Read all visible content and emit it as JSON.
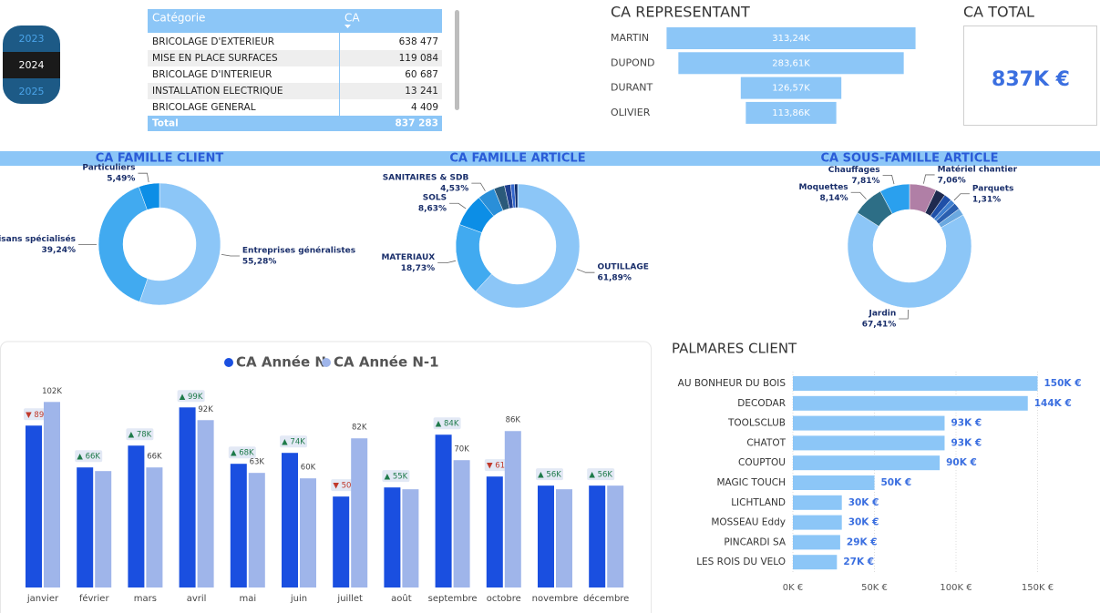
{
  "slicer": {
    "items": [
      {
        "label": "2023",
        "selected": false
      },
      {
        "label": "2024",
        "selected": true
      },
      {
        "label": "2025",
        "selected": false
      }
    ]
  },
  "table": {
    "columns": [
      "Catégorie",
      "CA"
    ],
    "rows": [
      [
        "BRICOLAGE D'EXTERIEUR",
        "638 477"
      ],
      [
        "MISE EN PLACE SURFACES",
        "119 084"
      ],
      [
        "BRICOLAGE D'INTERIEUR",
        "60 687"
      ],
      [
        "INSTALLATION ELECTRIQUE",
        "13 241"
      ],
      [
        "BRICOLAGE GENERAL",
        "4 409"
      ]
    ],
    "total": [
      "Total",
      "837 283"
    ]
  },
  "card": {
    "title": "CA TOTAL",
    "value": "837K €"
  },
  "chart_data": [
    {
      "type": "funnel",
      "title": "CA REPRESENTANT",
      "categories": [
        "MARTIN",
        "DUPOND",
        "DURANT",
        "OLIVIER"
      ],
      "values": [
        313.24,
        283.61,
        126.57,
        113.86
      ],
      "value_labels": [
        "313,24K",
        "283,61K",
        "126,57K",
        "113,86K"
      ],
      "color": "#8cc6f7"
    },
    {
      "type": "donut",
      "title": "CA FAMILLE CLIENT",
      "categories": [
        "Entreprises généralistes",
        "Artisans spécialisés",
        "Particuliers"
      ],
      "values": [
        55.28,
        39.24,
        5.49
      ],
      "value_labels": [
        "55,28%",
        "39,24%",
        "5,49%"
      ],
      "colors": [
        "#8cc6f7",
        "#41aaf0",
        "#0c8ee6"
      ]
    },
    {
      "type": "donut",
      "title": "CA FAMILLE ARTICLE",
      "categories": [
        "OUTILLAGE",
        "MATERIAUX",
        "SOLS",
        "SANITAIRES & SDB",
        null,
        null,
        null,
        null
      ],
      "values": [
        61.89,
        18.73,
        8.63,
        4.53,
        2.8,
        1.6,
        1.0,
        0.82
      ],
      "value_labels": [
        "61,89%",
        "18,73%",
        "8,63%",
        "4,53%",
        null,
        null,
        null,
        null
      ],
      "colors": [
        "#8cc6f7",
        "#41aaf0",
        "#0c8ee6",
        "#2a8fd8",
        "#2b5a7a",
        "#1f3f8f",
        "#3366cc",
        "#0b2a6b"
      ]
    },
    {
      "type": "donut",
      "title": "CA SOUS-FAMILLE ARTICLE",
      "categories": [
        "Matériel chantier",
        null,
        null,
        "Parquets",
        null,
        null,
        "Jardin",
        "Moquettes",
        "Chauffages"
      ],
      "values": [
        7.06,
        2.6,
        2.0,
        1.31,
        1.8,
        1.87,
        67.41,
        8.14,
        7.81
      ],
      "value_labels": [
        "7,06%",
        null,
        null,
        "1,31%",
        null,
        null,
        "67,41%",
        "8,14%",
        "7,81%"
      ],
      "colors": [
        "#b07fa6",
        "#1f2a4f",
        "#1f4fa8",
        "#3f7fd0",
        "#2a5fb0",
        "#6aa8e0",
        "#8cc6f7",
        "#2d6e86",
        "#2aa0ee"
      ]
    },
    {
      "type": "grouped-bar",
      "categories": [
        "janvier",
        "février",
        "mars",
        "avril",
        "mai",
        "juin",
        "juillet",
        "août",
        "septembre",
        "octobre",
        "novembre",
        "décembre"
      ],
      "series": [
        {
          "name": "CA Année N",
          "color": "#1a4fe0",
          "values": [
            89,
            66,
            78,
            99,
            68,
            74,
            50,
            55,
            84,
            61,
            56,
            56
          ],
          "value_labels": [
            "▼ 89K",
            "▲ 66K",
            "▲ 78K",
            "▲ 99K",
            "▲ 68K",
            "▲ 74K",
            "▼ 50K",
            "▲ 55K",
            "▲ 84K",
            "▼ 61K",
            "▲ 56K",
            "▲ 56K"
          ]
        },
        {
          "name": "CA Année N-1",
          "color": "#9fb5ea",
          "values": [
            102,
            64,
            66,
            92,
            63,
            60,
            82,
            54,
            70,
            86,
            54,
            56
          ],
          "value_labels": [
            "102K",
            null,
            "66K",
            "92K",
            "63K",
            "60K",
            "82K",
            null,
            "70K",
            "86K",
            null,
            null
          ]
        }
      ]
    },
    {
      "type": "hbar",
      "title": "PALMARES CLIENT",
      "categories": [
        "AU BONHEUR DU BOIS",
        "DECODAR",
        "TOOLSCLUB",
        "CHATOT",
        "COUPTOU",
        "MAGIC TOUCH",
        "LICHTLAND",
        "MOSSEAU Eddy",
        "PINCARDI SA",
        "LES ROIS DU VELO"
      ],
      "values": [
        150,
        144,
        93,
        93,
        90,
        50,
        30,
        30,
        29,
        27
      ],
      "value_labels": [
        "150K €",
        "144K €",
        "93K €",
        "93K €",
        "90K €",
        "50K €",
        "30K €",
        "30K €",
        "29K €",
        "27K €"
      ],
      "color": "#8cc6f7",
      "xlim": [
        0,
        160
      ],
      "xticks": [
        {
          "value": 0,
          "label": "0K €"
        },
        {
          "value": 50,
          "label": "50K €"
        },
        {
          "value": 100,
          "label": "100K €"
        },
        {
          "value": 150,
          "label": "150K €"
        }
      ],
      "grid": true
    }
  ]
}
